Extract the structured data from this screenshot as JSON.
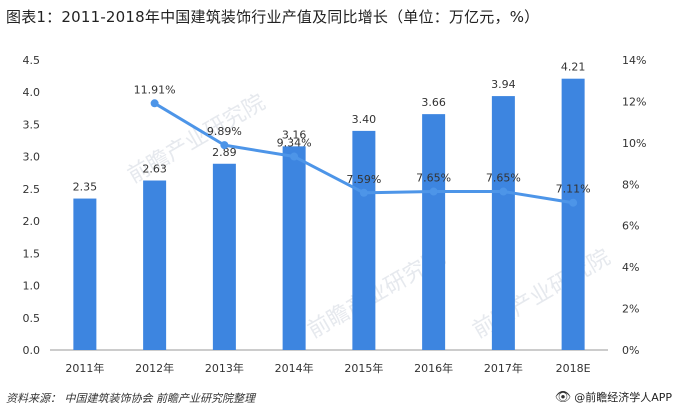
{
  "title": "图表1：2011-2018年中国建筑装饰行业产值及同比增长（单位：万亿元，%）",
  "source": "资料来源： 中国建筑装饰协会 前瞻产业研究院整理",
  "brand": {
    "label": "@前瞻经济学人APP",
    "icon": "eye-logo-icon"
  },
  "watermark": "前瞻产业研究院",
  "colors": {
    "bar": "#3d85e0",
    "line": "#4d95e8",
    "axis": "#999999",
    "text": "#333333"
  },
  "chart_data": {
    "type": "bar",
    "categories": [
      "2011年",
      "2012年",
      "2013年",
      "2014年",
      "2015年",
      "2016年",
      "2017年",
      "2018E"
    ],
    "series": [
      {
        "type": "bar",
        "axis": "left",
        "values": [
          2.35,
          2.63,
          2.89,
          3.16,
          3.4,
          3.66,
          3.94,
          4.21
        ],
        "labels": [
          "2.35",
          "2.63",
          "2.89",
          "3.16",
          "3.40",
          "3.66",
          "3.94",
          "4.21"
        ]
      },
      {
        "type": "line",
        "axis": "right",
        "values": [
          null,
          11.91,
          9.89,
          9.34,
          7.59,
          7.65,
          7.65,
          7.11
        ],
        "labels": [
          null,
          "11.91%",
          "9.89%",
          "9.34%",
          "7.59%",
          "7.65%",
          "7.65%",
          "7.11%"
        ]
      }
    ],
    "y_left": {
      "min": 0,
      "max": 4.5,
      "ticks": [
        "0.0",
        "0.5",
        "1.0",
        "1.5",
        "2.0",
        "2.5",
        "3.0",
        "3.5",
        "4.0",
        "4.5"
      ]
    },
    "y_right": {
      "min": 0,
      "max": 14,
      "ticks": [
        "0%",
        "2%",
        "4%",
        "6%",
        "8%",
        "10%",
        "12%",
        "14%"
      ]
    },
    "grid": false,
    "legend": "none"
  }
}
